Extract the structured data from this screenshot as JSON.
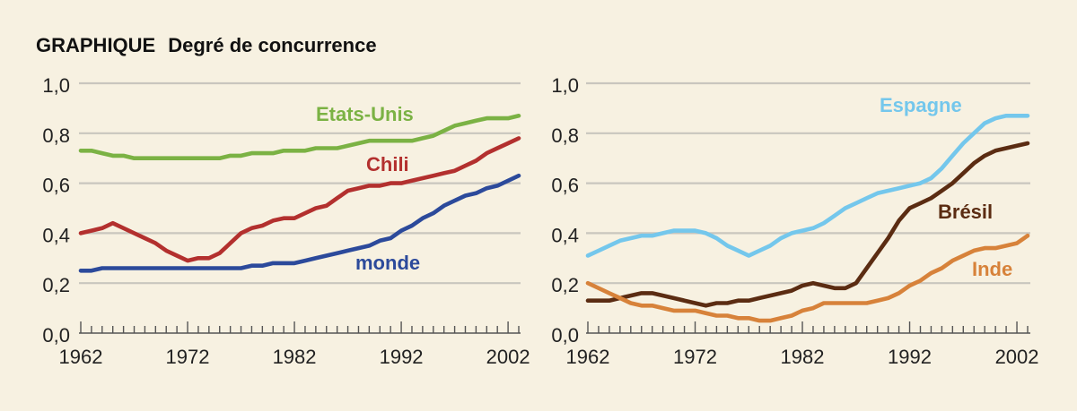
{
  "header": {
    "label": "GRAPHIQUE",
    "title": "Degré de concurrence"
  },
  "colors": {
    "background": "#f7f1e1",
    "grid": "#c9c6be",
    "axis": "#555555",
    "text": "#222222"
  },
  "chart_data": [
    {
      "type": "line",
      "x": [
        1962,
        1963,
        1964,
        1965,
        1966,
        1967,
        1968,
        1969,
        1970,
        1971,
        1972,
        1973,
        1974,
        1975,
        1976,
        1977,
        1978,
        1979,
        1980,
        1981,
        1982,
        1983,
        1984,
        1985,
        1986,
        1987,
        1988,
        1989,
        1990,
        1991,
        1992,
        1993,
        1994,
        1995,
        1996,
        1997,
        1998,
        1999,
        2000,
        2001,
        2002,
        2003
      ],
      "xlim": [
        1962,
        2003
      ],
      "ylim": [
        0,
        1
      ],
      "xticks": [
        "1962",
        "1972",
        "1982",
        "1992",
        "2002"
      ],
      "yticks": [
        "0,0",
        "0,2",
        "0,4",
        "0,6",
        "0,8",
        "1,0"
      ],
      "grid": true,
      "legend": "inline",
      "series": [
        {
          "name": "Etats-Unis",
          "color": "#7bb244",
          "values": [
            0.73,
            0.73,
            0.72,
            0.71,
            0.71,
            0.7,
            0.7,
            0.7,
            0.7,
            0.7,
            0.7,
            0.7,
            0.7,
            0.7,
            0.71,
            0.71,
            0.72,
            0.72,
            0.72,
            0.73,
            0.73,
            0.73,
            0.74,
            0.74,
            0.74,
            0.75,
            0.76,
            0.77,
            0.77,
            0.77,
            0.77,
            0.77,
            0.78,
            0.79,
            0.81,
            0.83,
            0.84,
            0.85,
            0.86,
            0.86,
            0.86,
            0.87
          ]
        },
        {
          "name": "Chili",
          "color": "#b3302e",
          "values": [
            0.4,
            0.41,
            0.42,
            0.44,
            0.42,
            0.4,
            0.38,
            0.36,
            0.33,
            0.31,
            0.29,
            0.3,
            0.3,
            0.32,
            0.36,
            0.4,
            0.42,
            0.43,
            0.45,
            0.46,
            0.46,
            0.48,
            0.5,
            0.51,
            0.54,
            0.57,
            0.58,
            0.59,
            0.59,
            0.6,
            0.6,
            0.61,
            0.62,
            0.63,
            0.64,
            0.65,
            0.67,
            0.69,
            0.72,
            0.74,
            0.76,
            0.78
          ]
        },
        {
          "name": "monde",
          "color": "#2c4a9b",
          "values": [
            0.25,
            0.25,
            0.26,
            0.26,
            0.26,
            0.26,
            0.26,
            0.26,
            0.26,
            0.26,
            0.26,
            0.26,
            0.26,
            0.26,
            0.26,
            0.26,
            0.27,
            0.27,
            0.28,
            0.28,
            0.28,
            0.29,
            0.3,
            0.31,
            0.32,
            0.33,
            0.34,
            0.35,
            0.37,
            0.38,
            0.41,
            0.43,
            0.46,
            0.48,
            0.51,
            0.53,
            0.55,
            0.56,
            0.58,
            0.59,
            0.61,
            0.63
          ]
        }
      ]
    },
    {
      "type": "line",
      "x": [
        1962,
        1963,
        1964,
        1965,
        1966,
        1967,
        1968,
        1969,
        1970,
        1971,
        1972,
        1973,
        1974,
        1975,
        1976,
        1977,
        1978,
        1979,
        1980,
        1981,
        1982,
        1983,
        1984,
        1985,
        1986,
        1987,
        1988,
        1989,
        1990,
        1991,
        1992,
        1993,
        1994,
        1995,
        1996,
        1997,
        1998,
        1999,
        2000,
        2001,
        2002,
        2003
      ],
      "xlim": [
        1962,
        2003
      ],
      "ylim": [
        0,
        1
      ],
      "xticks": [
        "1962",
        "1972",
        "1982",
        "1992",
        "2002"
      ],
      "yticks": [
        "0,0",
        "0,2",
        "0,4",
        "0,6",
        "0,8",
        "1,0"
      ],
      "grid": true,
      "legend": "inline",
      "series": [
        {
          "name": "Espagne",
          "color": "#74c7ec",
          "values": [
            0.31,
            0.33,
            0.35,
            0.37,
            0.38,
            0.39,
            0.39,
            0.4,
            0.41,
            0.41,
            0.41,
            0.4,
            0.38,
            0.35,
            0.33,
            0.31,
            0.33,
            0.35,
            0.38,
            0.4,
            0.41,
            0.42,
            0.44,
            0.47,
            0.5,
            0.52,
            0.54,
            0.56,
            0.57,
            0.58,
            0.59,
            0.6,
            0.62,
            0.66,
            0.71,
            0.76,
            0.8,
            0.84,
            0.86,
            0.87,
            0.87,
            0.87
          ]
        },
        {
          "name": "Brésil",
          "color": "#5b2c12",
          "values": [
            0.13,
            0.13,
            0.13,
            0.14,
            0.15,
            0.16,
            0.16,
            0.15,
            0.14,
            0.13,
            0.12,
            0.11,
            0.12,
            0.12,
            0.13,
            0.13,
            0.14,
            0.15,
            0.16,
            0.17,
            0.19,
            0.2,
            0.19,
            0.18,
            0.18,
            0.2,
            0.26,
            0.32,
            0.38,
            0.45,
            0.5,
            0.52,
            0.54,
            0.57,
            0.6,
            0.64,
            0.68,
            0.71,
            0.73,
            0.74,
            0.75,
            0.76
          ]
        },
        {
          "name": "Inde",
          "color": "#d7823a",
          "values": [
            0.2,
            0.18,
            0.16,
            0.14,
            0.12,
            0.11,
            0.11,
            0.1,
            0.09,
            0.09,
            0.09,
            0.08,
            0.07,
            0.07,
            0.06,
            0.06,
            0.05,
            0.05,
            0.06,
            0.07,
            0.09,
            0.1,
            0.12,
            0.12,
            0.12,
            0.12,
            0.12,
            0.13,
            0.14,
            0.16,
            0.19,
            0.21,
            0.24,
            0.26,
            0.29,
            0.31,
            0.33,
            0.34,
            0.34,
            0.35,
            0.36,
            0.39
          ]
        }
      ]
    }
  ]
}
